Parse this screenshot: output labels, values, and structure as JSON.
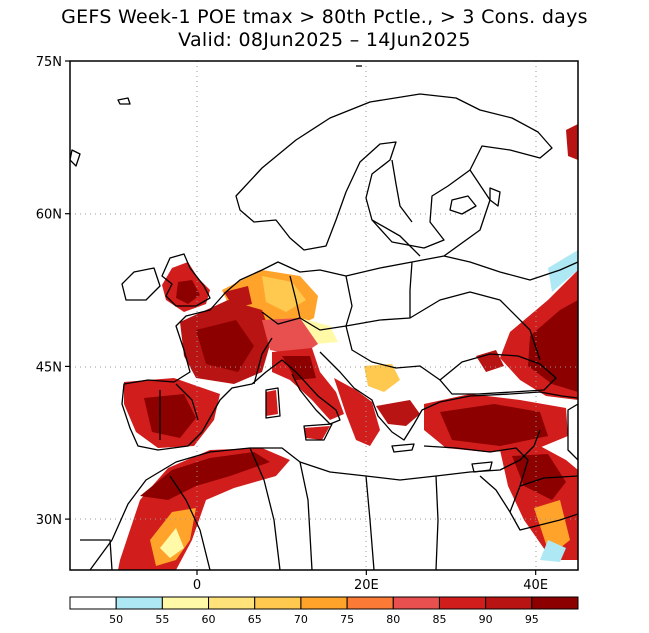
{
  "title": "GEFS Week-1 POE tmax > 80th Pctle., > 3 Cons. days",
  "subtitle": "Valid: 08Jun2025 – 14Jun2025",
  "lat_labels": [
    {
      "text": "75N",
      "lat": 75
    },
    {
      "text": "60N",
      "lat": 60
    },
    {
      "text": "45N",
      "lat": 45
    },
    {
      "text": "30N",
      "lat": 30
    }
  ],
  "lon_labels": [
    {
      "text": "0",
      "lon": 0
    },
    {
      "text": "20E",
      "lon": 20
    },
    {
      "text": "40E",
      "lon": 40
    }
  ],
  "map_extent": {
    "lon_min": -15,
    "lon_max": 45,
    "lat_min": 25,
    "lat_max": 75
  },
  "colorbar": {
    "colors": [
      "#ffffff",
      "#aee8f5",
      "#fff9a8",
      "#ffe27a",
      "#ffc94f",
      "#ffa32a",
      "#fb7b36",
      "#e85050",
      "#d21d1d",
      "#b81414",
      "#8c0000"
    ],
    "labels": [
      "50",
      "55",
      "60",
      "65",
      "70",
      "75",
      "80",
      "85",
      "90",
      "95"
    ]
  },
  "colors": {
    "p80": "#fb7b36",
    "p85": "#e85050",
    "p90": "#d21d1d",
    "p95": "#b81414",
    "p99": "#8c0000",
    "p70": "#ffc94f",
    "p75": "#ffa32a",
    "p60": "#fff9a8",
    "p55": "#aee8f5"
  }
}
